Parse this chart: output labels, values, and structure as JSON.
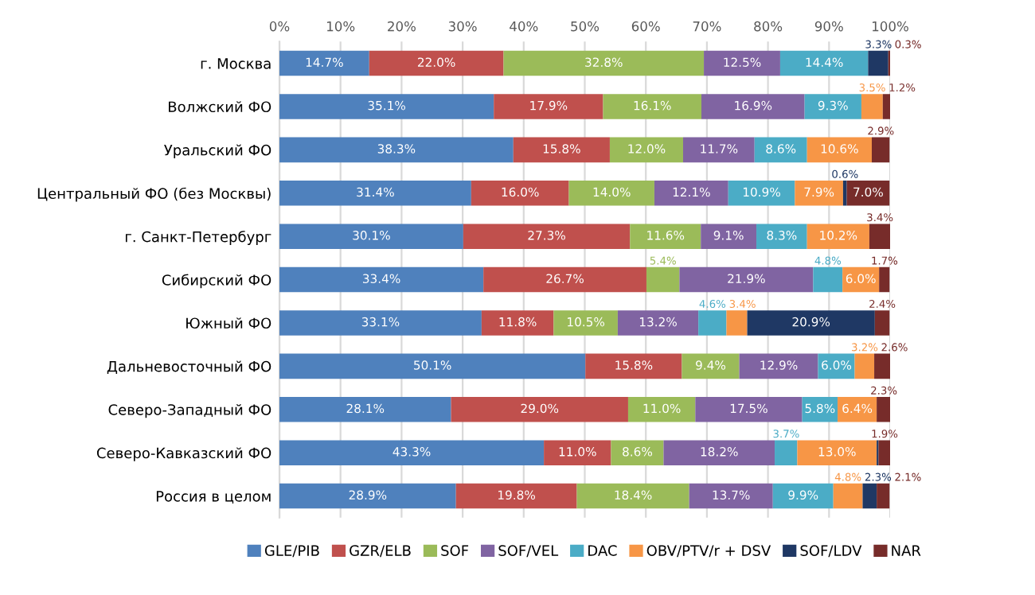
{
  "chart_data": {
    "type": "bar",
    "orientation": "horizontal",
    "stacked": true,
    "categories": [
      "г. Москва",
      "Волжский ФО",
      "Уральский ФО",
      "Центральный ФО (без Москвы)",
      "г. Санкт-Петербург",
      "Сибирский ФО",
      "Южный ФО",
      "Дальневосточный ФО",
      "Северо-Западный ФО",
      "Северо-Кавказский ФО",
      "Россия в целом"
    ],
    "xlim": [
      0,
      100
    ],
    "xticks": [
      {
        "value": 0,
        "label": "0%"
      },
      {
        "value": 10,
        "label": "10%"
      },
      {
        "value": 20,
        "label": "20%"
      },
      {
        "value": 30,
        "label": "30%"
      },
      {
        "value": 40,
        "label": "40%"
      },
      {
        "value": 50,
        "label": "50%"
      },
      {
        "value": 60,
        "label": "60%"
      },
      {
        "value": 70,
        "label": "70%"
      },
      {
        "value": 80,
        "label": "80%"
      },
      {
        "value": 90,
        "label": "90%"
      },
      {
        "value": 100,
        "label": "100%"
      }
    ],
    "grid": "x",
    "legend": "bottom",
    "series": [
      {
        "name": "GLE/PIB",
        "color": "#4f81bd",
        "values": [
          14.7,
          35.1,
          38.3,
          31.4,
          30.1,
          33.4,
          33.1,
          50.1,
          28.1,
          43.3,
          28.9
        ],
        "value_labels": [
          "14.7%",
          "35.1%",
          "38.3%",
          "31.4%",
          "30.1%",
          "33.4%",
          "33.1%",
          "50.1%",
          "28.1%",
          "43.3%",
          "28.9%"
        ]
      },
      {
        "name": "GZR/ELB",
        "color": "#c0504d",
        "values": [
          22.0,
          17.9,
          15.8,
          16.0,
          27.3,
          26.7,
          11.8,
          15.8,
          29.0,
          11.0,
          19.8
        ],
        "value_labels": [
          "22.0%",
          "17.9%",
          "15.8%",
          "16.0%",
          "27.3%",
          "26.7%",
          "11.8%",
          "15.8%",
          "29.0%",
          "11.0%",
          "19.8%"
        ]
      },
      {
        "name": "SOF",
        "color": "#9bbb59",
        "values": [
          32.8,
          16.1,
          12.0,
          14.0,
          11.6,
          5.4,
          10.5,
          9.4,
          11.0,
          8.6,
          18.4
        ],
        "value_labels": [
          "32.8%",
          "16.1%",
          "12.0%",
          "14.0%",
          "11.6%",
          "5.4%",
          "10.5%",
          "9.4%",
          "11.0%",
          "8.6%",
          "18.4%"
        ]
      },
      {
        "name": "SOF/VEL",
        "color": "#8064a2",
        "values": [
          12.5,
          16.9,
          11.7,
          12.1,
          9.1,
          21.9,
          13.2,
          12.9,
          17.5,
          18.2,
          13.7
        ],
        "value_labels": [
          "12.5%",
          "16.9%",
          "11.7%",
          "12.1%",
          "9.1%",
          "21.9%",
          "13.2%",
          "12.9%",
          "17.5%",
          "18.2%",
          "13.7%"
        ]
      },
      {
        "name": "DAC",
        "color": "#4bacc6",
        "values": [
          14.4,
          9.3,
          8.6,
          10.9,
          8.3,
          4.8,
          4.6,
          6.0,
          5.8,
          3.7,
          9.9
        ],
        "value_labels": [
          "14.4%",
          "9.3%",
          "8.6%",
          "10.9%",
          "8.3%",
          "4.8%",
          "4.6%",
          "6.0%",
          "5.8%",
          "3.7%",
          "9.9%"
        ]
      },
      {
        "name": "OBV/PTV/r + DSV",
        "color": "#f79646",
        "values": [
          null,
          3.5,
          10.6,
          7.9,
          10.2,
          6.0,
          3.4,
          3.2,
          6.4,
          13.0,
          4.8
        ],
        "value_labels": [
          null,
          "3.5%",
          "10.6%",
          "7.9%",
          "10.2%",
          "6.0%",
          "3.4%",
          "3.2%",
          "6.4%",
          "13.0%",
          "4.8%"
        ]
      },
      {
        "name": "SOF/LDV",
        "color": "#1f3864",
        "values": [
          3.3,
          null,
          null,
          0.6,
          null,
          null,
          20.9,
          null,
          null,
          0.3,
          2.3
        ],
        "value_labels": [
          "3.3%",
          null,
          null,
          "0.6%",
          null,
          null,
          "20.9%",
          null,
          null,
          null,
          "2.3%"
        ]
      },
      {
        "name": "NAR",
        "color": "#772c2a",
        "values": [
          0.3,
          1.2,
          2.9,
          7.0,
          3.4,
          1.7,
          2.4,
          2.6,
          2.3,
          1.9,
          2.1
        ],
        "value_labels": [
          "0.3%",
          "1.2%",
          "2.9%",
          "7.0%",
          "3.4%",
          "1.7%",
          "2.4%",
          "2.6%",
          "2.3%",
          "1.9%",
          "2.1%"
        ]
      }
    ]
  }
}
